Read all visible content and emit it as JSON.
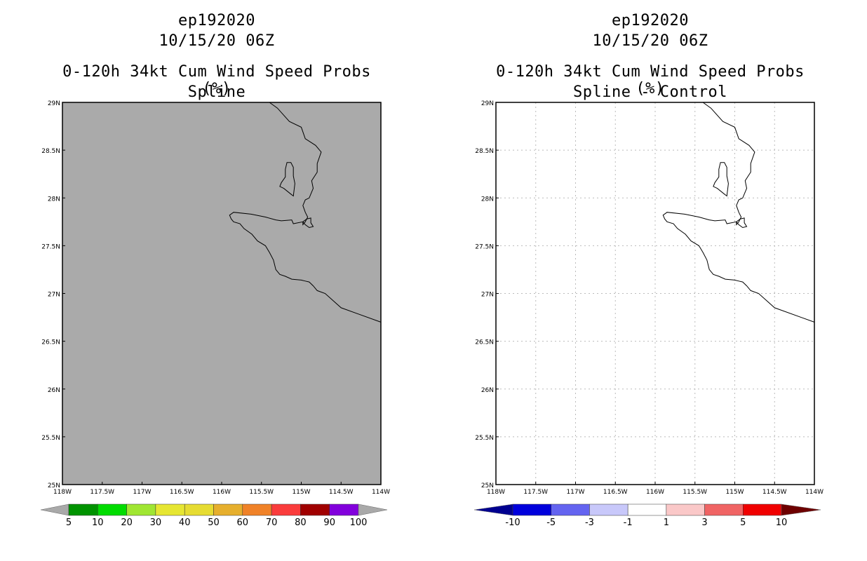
{
  "chart_data": [
    {
      "type": "heatmap",
      "storm_id": "ep192020",
      "datetime": "10/15/20 06Z",
      "title": "0-120h 34kt Cum Wind Speed Probs (%)",
      "subtitle": "Spline",
      "xlim": [
        -118,
        -114
      ],
      "ylim": [
        25,
        29
      ],
      "x_ticks": [
        "118W",
        "117.5W",
        "117W",
        "116.5W",
        "116W",
        "115.5W",
        "115W",
        "114.5W",
        "114W"
      ],
      "y_ticks": [
        "25N",
        "25.5N",
        "26N",
        "26.5N",
        "27N",
        "27.5N",
        "28N",
        "28.5N",
        "29N"
      ],
      "grid": false,
      "field_value": "below 5% everywhere (uniform gray shading)",
      "fill_color": "#aaaaaa",
      "colorbar": {
        "labels": [
          "5",
          "10",
          "20",
          "30",
          "40",
          "50",
          "60",
          "70",
          "80",
          "90",
          "100"
        ],
        "colors": [
          "#009300",
          "#00dc00",
          "#a0e632",
          "#e6e632",
          "#e6dc32",
          "#e6af2d",
          "#f08228",
          "#fa3c3c",
          "#a00000",
          "#8200dc"
        ],
        "under_color": "#a9a9a9",
        "over_color": "#a9a9a9"
      }
    },
    {
      "type": "heatmap",
      "storm_id": "ep192020",
      "datetime": "10/15/20 06Z",
      "title": "0-120h 34kt Cum Wind Speed Probs (%)",
      "subtitle": "Spline - Control",
      "xlim": [
        -118,
        -114
      ],
      "ylim": [
        25,
        29
      ],
      "x_ticks": [
        "118W",
        "117.5W",
        "117W",
        "116.5W",
        "116W",
        "115.5W",
        "115W",
        "114.5W",
        "114W"
      ],
      "y_ticks": [
        "25N",
        "25.5N",
        "26N",
        "26.5N",
        "27N",
        "27.5N",
        "28N",
        "28.5N",
        "29N"
      ],
      "grid": true,
      "field_value": "difference between -1 and 1 everywhere (white)",
      "fill_color": "#ffffff",
      "colorbar": {
        "labels": [
          "-10",
          "-5",
          "-3",
          "-1",
          "1",
          "3",
          "5",
          "10"
        ],
        "colors": [
          "#0000dc",
          "#6464f0",
          "#c8c8fa",
          "#ffffff",
          "#fac8c8",
          "#f06464",
          "#f00000"
        ],
        "under_color": "#000090",
        "over_color": "#6e0000"
      }
    }
  ],
  "coastline_lonlat": {
    "mainland": [
      [
        -115.4,
        29.0
      ],
      [
        -115.3,
        28.94
      ],
      [
        -115.15,
        28.8
      ],
      [
        -115.0,
        28.74
      ],
      [
        -114.95,
        28.62
      ],
      [
        -114.82,
        28.55
      ],
      [
        -114.75,
        28.48
      ],
      [
        -114.8,
        28.36
      ],
      [
        -114.8,
        28.27
      ],
      [
        -114.87,
        28.18
      ],
      [
        -114.85,
        28.1
      ],
      [
        -114.9,
        28.0
      ],
      [
        -114.95,
        27.98
      ],
      [
        -114.98,
        27.92
      ],
      [
        -114.95,
        27.85
      ],
      [
        -114.92,
        27.8
      ],
      [
        -114.95,
        27.75
      ],
      [
        -114.98,
        27.72
      ],
      [
        -114.98,
        27.75
      ],
      [
        -115.1,
        27.73
      ],
      [
        -115.12,
        27.77
      ],
      [
        -115.25,
        27.76
      ],
      [
        -115.32,
        27.77
      ],
      [
        -115.45,
        27.8
      ],
      [
        -115.63,
        27.83
      ],
      [
        -115.85,
        27.85
      ],
      [
        -115.9,
        27.82
      ],
      [
        -115.88,
        27.78
      ],
      [
        -115.85,
        27.75
      ],
      [
        -115.77,
        27.73
      ],
      [
        -115.72,
        27.68
      ],
      [
        -115.62,
        27.62
      ],
      [
        -115.55,
        27.55
      ],
      [
        -115.45,
        27.5
      ],
      [
        -115.4,
        27.43
      ],
      [
        -115.35,
        27.35
      ],
      [
        -115.32,
        27.25
      ],
      [
        -115.27,
        27.2
      ],
      [
        -115.2,
        27.18
      ],
      [
        -115.12,
        27.15
      ],
      [
        -115.0,
        27.14
      ],
      [
        -114.95,
        27.13
      ],
      [
        -114.9,
        27.12
      ],
      [
        -114.85,
        27.08
      ],
      [
        -114.8,
        27.03
      ],
      [
        -114.7,
        27.0
      ],
      [
        -114.5,
        26.85
      ],
      [
        -114.0,
        26.7
      ]
    ],
    "island": [
      [
        -115.18,
        28.37
      ],
      [
        -115.13,
        28.37
      ],
      [
        -115.1,
        28.32
      ],
      [
        -115.1,
        28.23
      ],
      [
        -115.08,
        28.15
      ],
      [
        -115.1,
        28.02
      ],
      [
        -115.13,
        28.04
      ],
      [
        -115.22,
        28.1
      ],
      [
        -115.27,
        28.12
      ],
      [
        -115.25,
        28.16
      ],
      [
        -115.2,
        28.22
      ],
      [
        -115.2,
        28.3
      ]
    ],
    "inlet": [
      [
        -114.98,
        27.75
      ],
      [
        -114.93,
        27.78
      ],
      [
        -114.88,
        27.79
      ],
      [
        -114.88,
        27.74
      ],
      [
        -114.85,
        27.7
      ],
      [
        -114.9,
        27.69
      ],
      [
        -114.95,
        27.72
      ]
    ]
  }
}
